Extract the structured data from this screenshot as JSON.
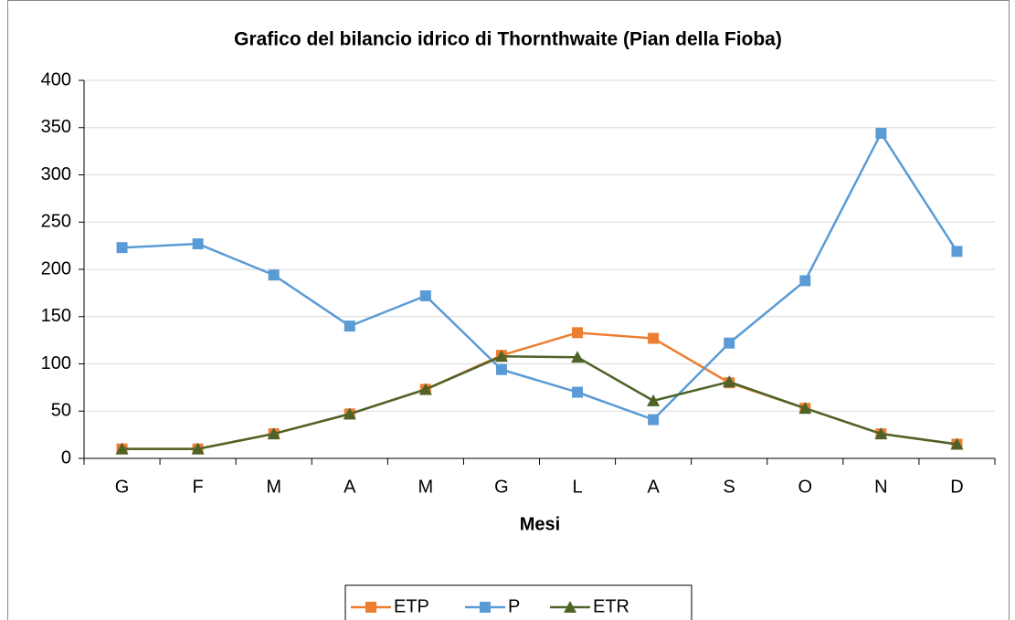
{
  "chart_data": {
    "type": "line",
    "title": "Grafico del bilancio idrico di Thornthwaite (Pian della Fioba)",
    "x_label": "Mesi",
    "categories": [
      "G",
      "F",
      "M",
      "A",
      "M",
      "G",
      "L",
      "A",
      "S",
      "O",
      "N",
      "D"
    ],
    "series": [
      {
        "name": "ETP",
        "color": "#ed7d31",
        "marker": "square",
        "values": [
          10,
          10,
          26,
          47,
          73,
          109,
          133,
          127,
          80,
          53,
          26,
          15
        ]
      },
      {
        "name": "P",
        "color": "#5b9bd5",
        "marker": "square",
        "values": [
          223,
          227,
          194,
          140,
          172,
          94,
          70,
          41,
          122,
          188,
          344,
          219
        ]
      },
      {
        "name": "ETR",
        "color": "#4f6228",
        "marker": "triangle",
        "values": [
          10,
          10,
          26,
          47,
          73,
          108,
          107,
          61,
          81,
          53,
          26,
          15
        ]
      }
    ],
    "ylim": [
      0,
      400
    ],
    "yticks": [
      0,
      50,
      100,
      150,
      200,
      250,
      300,
      350,
      400
    ],
    "grid": true,
    "legend": "bottom"
  }
}
